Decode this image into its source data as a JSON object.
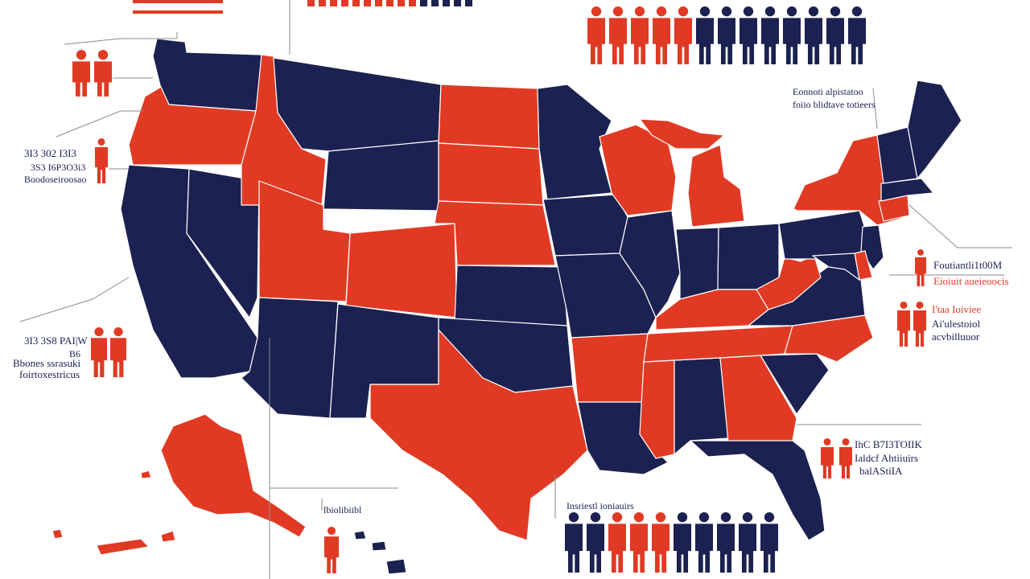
{
  "colors": {
    "red": "#e03a24",
    "navy": "#1b2150",
    "line": "#8a8a8a",
    "background": "#ffffff"
  },
  "annotations": [
    {
      "key": "top-right-1",
      "text": "Eonnoti alpistatoo"
    },
    {
      "key": "top-right-2",
      "text": "foiio blidtave totieers"
    },
    {
      "key": "left-1",
      "text": "3I3 302 I3I3"
    },
    {
      "key": "left-2",
      "text": "3S3 I6P3O3i3"
    },
    {
      "key": "left-3",
      "text": "Boodoseiroosao"
    },
    {
      "key": "left-4",
      "text": "3I3 3S8 PAI|W"
    },
    {
      "key": "left-5",
      "text": "B6"
    },
    {
      "key": "left-6",
      "text": "Bbones ssrasuki"
    },
    {
      "key": "left-7",
      "text": "foirtoxestricus"
    },
    {
      "key": "right-1",
      "text": "Foutiantli1t00M"
    },
    {
      "key": "right-2",
      "text": "Eioiuit aueieoocis"
    },
    {
      "key": "right-3",
      "text": "I'taa Ioiviee"
    },
    {
      "key": "right-4",
      "text": "Ai'ulestoiol"
    },
    {
      "key": "right-5",
      "text": "acvbilluuor"
    },
    {
      "key": "right-6",
      "text": "IhC B7I3TOIIK"
    },
    {
      "key": "right-7",
      "text": "Ialdcf Ahtiiuirs"
    },
    {
      "key": "right-8",
      "text": "balAStiIA"
    },
    {
      "key": "bottom-1",
      "text": "Insriestl ioniauirs"
    },
    {
      "key": "bottom-2",
      "text": "lbiolibiibl"
    }
  ],
  "people_rows": {
    "top": [
      "red",
      "red",
      "red",
      "red",
      "red",
      "navy",
      "navy",
      "navy",
      "navy",
      "navy",
      "navy",
      "navy",
      "navy"
    ],
    "bottom": [
      "navy",
      "navy",
      "red",
      "red",
      "red",
      "navy",
      "navy",
      "navy",
      "navy",
      "navy"
    ]
  },
  "icons": [
    "person-icon",
    "people-pair-icon",
    "person-bar-icon"
  ]
}
